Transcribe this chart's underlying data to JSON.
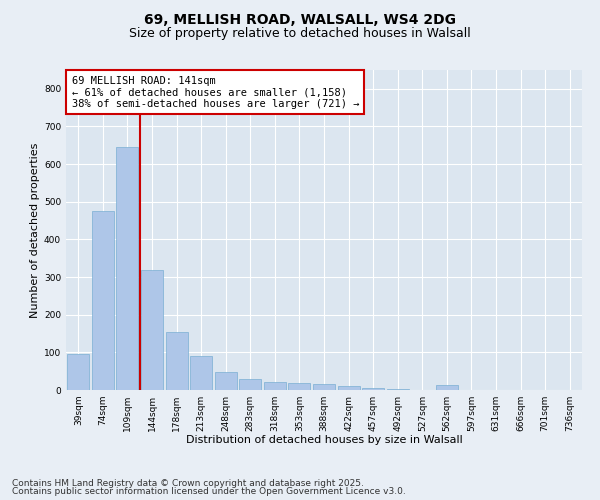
{
  "title_line1": "69, MELLISH ROAD, WALSALL, WS4 2DG",
  "title_line2": "Size of property relative to detached houses in Walsall",
  "xlabel": "Distribution of detached houses by size in Walsall",
  "ylabel": "Number of detached properties",
  "categories": [
    "39sqm",
    "74sqm",
    "109sqm",
    "144sqm",
    "178sqm",
    "213sqm",
    "248sqm",
    "283sqm",
    "318sqm",
    "353sqm",
    "388sqm",
    "422sqm",
    "457sqm",
    "492sqm",
    "527sqm",
    "562sqm",
    "597sqm",
    "631sqm",
    "666sqm",
    "701sqm",
    "736sqm"
  ],
  "values": [
    95,
    475,
    645,
    320,
    155,
    90,
    48,
    28,
    20,
    18,
    15,
    10,
    5,
    3,
    0,
    12,
    0,
    0,
    0,
    0,
    0
  ],
  "bar_color": "#aec6e8",
  "bar_edge_color": "#7aafd4",
  "vline_color": "#cc0000",
  "vline_index": 2.5,
  "annotation_text": "69 MELLISH ROAD: 141sqm\n← 61% of detached houses are smaller (1,158)\n38% of semi-detached houses are larger (721) →",
  "annotation_box_color": "#ffffff",
  "annotation_box_edge_color": "#cc0000",
  "ylim": [
    0,
    850
  ],
  "yticks": [
    0,
    100,
    200,
    300,
    400,
    500,
    600,
    700,
    800
  ],
  "bg_color": "#e8eef5",
  "plot_bg_color": "#dce6f0",
  "footer_line1": "Contains HM Land Registry data © Crown copyright and database right 2025.",
  "footer_line2": "Contains public sector information licensed under the Open Government Licence v3.0.",
  "title_fontsize": 10,
  "subtitle_fontsize": 9,
  "axis_label_fontsize": 8,
  "tick_fontsize": 6.5,
  "annotation_fontsize": 7.5,
  "footer_fontsize": 6.5
}
